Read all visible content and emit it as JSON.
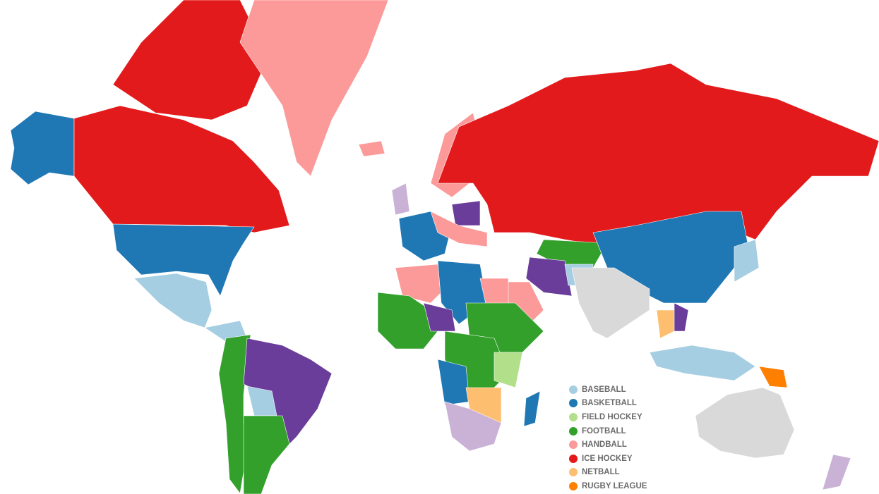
{
  "legend": [
    {
      "label": "BASEBALL",
      "color": "#a6cee3"
    },
    {
      "label": "BASKETBALL",
      "color": "#1f78b4"
    },
    {
      "label": "FIELD HOCKEY",
      "color": "#b2df8a"
    },
    {
      "label": "FOOTBALL",
      "color": "#33a02c"
    },
    {
      "label": "HANDBALL",
      "color": "#fb9a99"
    },
    {
      "label": "ICE HOCKEY",
      "color": "#e31a1c"
    },
    {
      "label": "NETBALL",
      "color": "#fdbf6f"
    },
    {
      "label": "RUGBY LEAGUE",
      "color": "#ff7f00"
    }
  ],
  "other_colors": {
    "purple": "#6a3d9a",
    "light_purple": "#cab2d6",
    "no_data": "#d9d9d9"
  }
}
